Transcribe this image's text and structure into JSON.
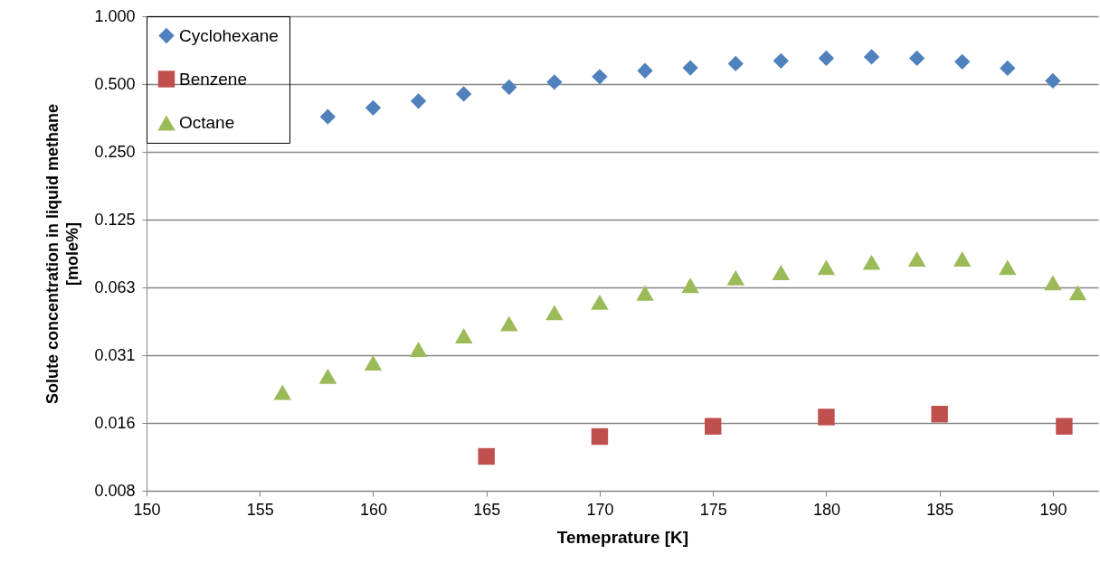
{
  "chart_data": {
    "type": "scatter",
    "xlabel": "Temeprature [K]",
    "ylabel": "Solute concentration in liquid methane [mole%]",
    "xlim": [
      150,
      192
    ],
    "xticks": [
      150,
      155,
      160,
      165,
      170,
      175,
      180,
      185,
      190
    ],
    "ylim": [
      0.0078125,
      1
    ],
    "yticks": [
      {
        "value": 0.0078125,
        "label": "0.008"
      },
      {
        "value": 0.015625,
        "label": "0.016"
      },
      {
        "value": 0.03125,
        "label": "0.031"
      },
      {
        "value": 0.0625,
        "label": "0.063"
      },
      {
        "value": 0.125,
        "label": "0.125"
      },
      {
        "value": 0.25,
        "label": "0.250"
      },
      {
        "value": 0.5,
        "label": "0.500"
      },
      {
        "value": 1,
        "label": "1.000"
      }
    ],
    "log": "y",
    "grid": "y",
    "legend": "top left",
    "series": [
      {
        "name": "Cyclohexane",
        "color": "#4f81bd",
        "marker": "diamond",
        "x": [
          158,
          160,
          162,
          164,
          166,
          168,
          170,
          172,
          174,
          176,
          178,
          180,
          182,
          184,
          186,
          188,
          190
        ],
        "values": [
          0.358,
          0.392,
          0.42,
          0.452,
          0.484,
          0.51,
          0.539,
          0.573,
          0.59,
          0.616,
          0.634,
          0.651,
          0.66,
          0.651,
          0.628,
          0.588,
          0.517
        ]
      },
      {
        "name": "Benzene",
        "color": "#c0504d",
        "marker": "square",
        "x": [
          165,
          170,
          175,
          180,
          185,
          190.5
        ],
        "values": [
          0.0111,
          0.0136,
          0.0151,
          0.0166,
          0.0171,
          0.0151
        ]
      },
      {
        "name": "Octane",
        "color": "#9bbb59",
        "marker": "triangle",
        "x": [
          156,
          158,
          160,
          162,
          164,
          166,
          168,
          170,
          172,
          174,
          176,
          178,
          180,
          182,
          184,
          186,
          188,
          190,
          191.1
        ],
        "values": [
          0.0214,
          0.0252,
          0.0289,
          0.0332,
          0.0381,
          0.0432,
          0.0483,
          0.0537,
          0.059,
          0.0638,
          0.069,
          0.0728,
          0.0767,
          0.0809,
          0.0836,
          0.0836,
          0.0767,
          0.0655,
          0.0592
        ]
      }
    ]
  }
}
